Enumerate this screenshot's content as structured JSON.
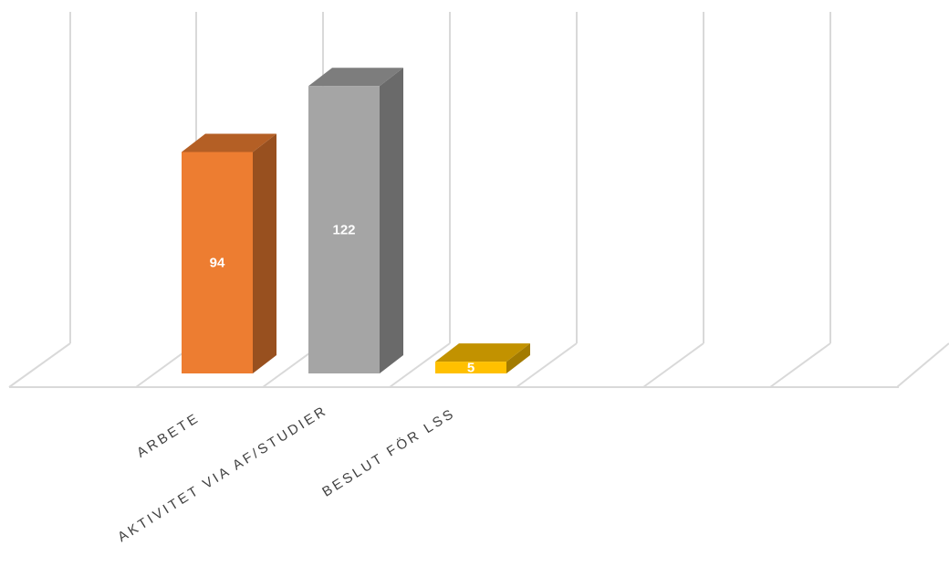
{
  "chart_data": {
    "type": "bar",
    "style": "3d-column",
    "categories": [
      "ARBETE",
      "AKTIVITET VIA AF/STUDIER",
      "BESLUT FÖR LSS"
    ],
    "series": [
      {
        "values": [
          94,
          122,
          5
        ]
      }
    ],
    "data_labels": [
      "94",
      "122",
      "5"
    ],
    "bar_colors": [
      "#ed7d31",
      "#a5a5a5",
      "#ffc000"
    ],
    "grid": true,
    "legend": "none",
    "title": "",
    "xlabel": "",
    "ylabel": ""
  }
}
